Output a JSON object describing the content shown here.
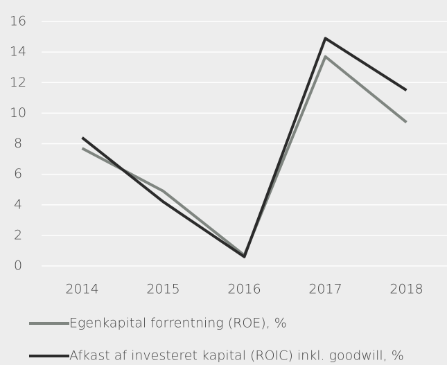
{
  "chart_data": {
    "type": "line",
    "categories": [
      "2014",
      "2015",
      "2016",
      "2017",
      "2018"
    ],
    "series": [
      {
        "name": "Egenkapital forrentning (ROE), %",
        "color": "#7f8580",
        "values": [
          7.7,
          4.9,
          0.7,
          13.7,
          9.4
        ]
      },
      {
        "name": "Afkast af investeret kapital (ROIC) inkl. goodwill, %",
        "color": "#2b2b2b",
        "values": [
          8.4,
          4.2,
          0.6,
          14.9,
          11.5
        ]
      }
    ],
    "ylim": [
      0,
      16
    ],
    "yticks": [
      0,
      2,
      4,
      6,
      8,
      10,
      12,
      14,
      16
    ],
    "grid": true
  }
}
